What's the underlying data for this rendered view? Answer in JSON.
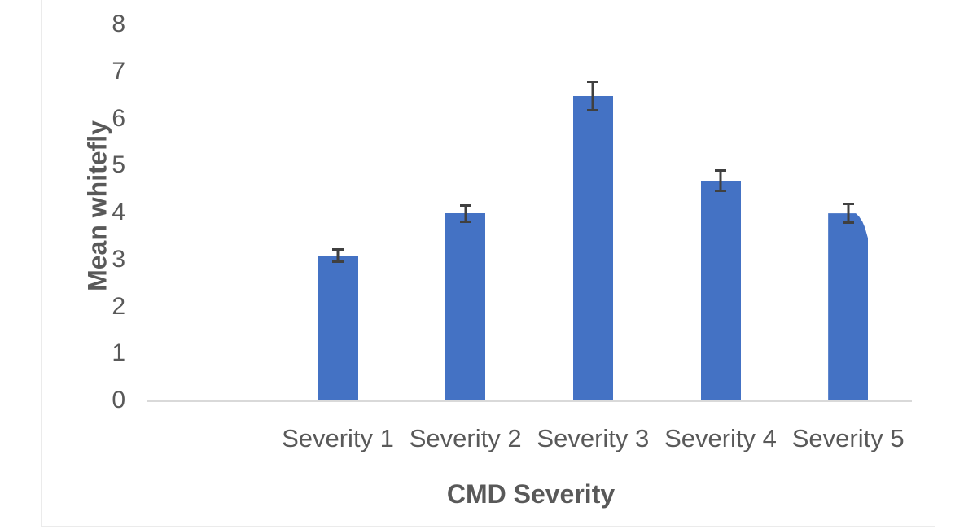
{
  "chart_data": {
    "type": "bar",
    "title": "",
    "xlabel": "CMD Severity",
    "ylabel": "Mean whitefly",
    "categories": [
      "Severity 1",
      "Severity 2",
      "Severity 3",
      "Severity 4",
      "Severity 5"
    ],
    "values": [
      3.08,
      3.98,
      6.48,
      4.67,
      3.98
    ],
    "error_bars": [
      0.16,
      0.2,
      0.33,
      0.24,
      0.22
    ],
    "ylim": [
      0,
      8
    ],
    "ytick_values": [
      0,
      1,
      2,
      3,
      4,
      5,
      6,
      7,
      8
    ],
    "grid": "off",
    "legend": "none",
    "bar_color": "#4472C4",
    "error_bar_color": "#404040",
    "axis_line_color": "#D9D9D9",
    "tick_label_color": "#595959",
    "axis_title_color": "#595959",
    "frame_border_color": "#EBEBEB"
  }
}
